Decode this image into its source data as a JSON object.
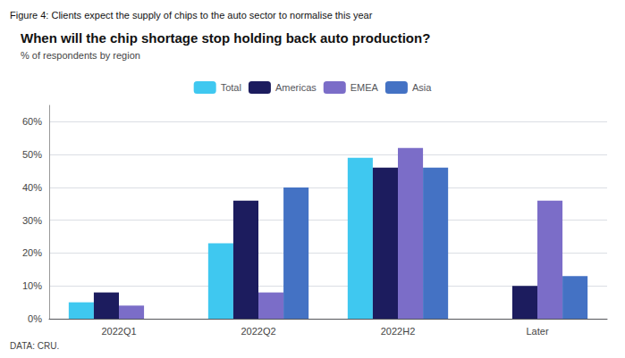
{
  "chart_data": {
    "type": "bar",
    "figure_title": "Figure 4: Clients expect the supply of chips to the auto sector to normalise this year",
    "title": "When will the chip shortage stop holding back auto production?",
    "subtitle": "% of respondents by region",
    "source": "DATA: CRU.",
    "categories": [
      "2022Q1",
      "2022Q2",
      "2022H2",
      "Later"
    ],
    "series": [
      {
        "name": "Total",
        "color": "#3FC8F0",
        "values": [
          5,
          23,
          49,
          0
        ]
      },
      {
        "name": "Americas",
        "color": "#1C1C5E",
        "values": [
          8,
          36,
          46,
          10
        ]
      },
      {
        "name": "EMEA",
        "color": "#7B6DC8",
        "values": [
          4,
          8,
          52,
          36
        ]
      },
      {
        "name": "Asia",
        "color": "#4472C4",
        "values": [
          0,
          40,
          46,
          13
        ]
      }
    ],
    "ylim": [
      0,
      65
    ],
    "yticks": [
      {
        "value": 0,
        "label": "0%"
      },
      {
        "value": 10,
        "label": "10%"
      },
      {
        "value": 20,
        "label": "20%"
      },
      {
        "value": 30,
        "label": "30%"
      },
      {
        "value": 40,
        "label": "40%"
      },
      {
        "value": 50,
        "label": "50%"
      },
      {
        "value": 60,
        "label": "60%"
      }
    ],
    "grid": true,
    "legend": "top"
  }
}
